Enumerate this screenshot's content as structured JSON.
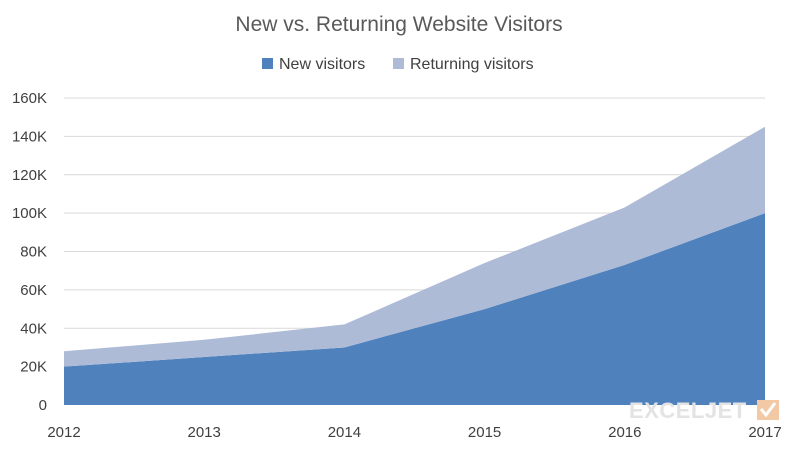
{
  "chart_data": {
    "type": "area",
    "stacked": true,
    "title": "New vs. Returning Website Visitors",
    "x": [
      "2012",
      "2013",
      "2014",
      "2015",
      "2016",
      "2017"
    ],
    "series": [
      {
        "name": "New visitors",
        "color": "#4f81bd",
        "values": [
          20000,
          25000,
          30000,
          50000,
          73000,
          100000
        ]
      },
      {
        "name": "Returning visitors",
        "color": "#adbbd7",
        "values": [
          8000,
          9000,
          12000,
          24000,
          30000,
          45000
        ]
      }
    ],
    "ylim": [
      0,
      160000
    ],
    "yticks": [
      0,
      20000,
      40000,
      60000,
      80000,
      100000,
      120000,
      140000,
      160000
    ],
    "ytick_labels": [
      "0",
      "20K",
      "40K",
      "60K",
      "80K",
      "100K",
      "120K",
      "140K",
      "160K"
    ],
    "grid": true,
    "legend_position": "top"
  },
  "watermark": {
    "text": "EXCELJET",
    "icon": "exceljet-logo-icon"
  }
}
